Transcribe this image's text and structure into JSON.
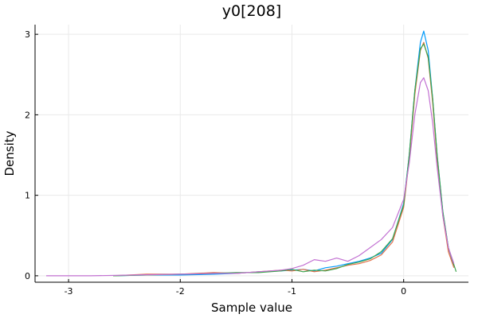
{
  "chart_data": {
    "type": "line",
    "title": "y0[208]",
    "xlabel": "Sample value",
    "ylabel": "Density",
    "xlim": [
      -3.3,
      0.58
    ],
    "ylim": [
      -0.08,
      3.12
    ],
    "xticks": [
      -3,
      -2,
      -1,
      0
    ],
    "xtick_labels": [
      "-3",
      "-2",
      "-1",
      "0"
    ],
    "yticks": [
      0,
      1,
      2,
      3
    ],
    "ytick_labels": [
      "0",
      "1",
      "2",
      "3"
    ],
    "grid": true,
    "legend": "none",
    "series": [
      {
        "color": "#009AFA",
        "x": [
          -2.6,
          -2.3,
          -2.0,
          -1.7,
          -1.5,
          -1.3,
          -1.1,
          -1.0,
          -0.9,
          -0.8,
          -0.7,
          -0.6,
          -0.5,
          -0.4,
          -0.3,
          -0.2,
          -0.1,
          0.0,
          0.05,
          0.1,
          0.15,
          0.18,
          0.22,
          0.26,
          0.3,
          0.35,
          0.4,
          0.45
        ],
        "y": [
          0.0,
          0.01,
          0.01,
          0.02,
          0.03,
          0.05,
          0.06,
          0.07,
          0.08,
          0.06,
          0.1,
          0.12,
          0.15,
          0.18,
          0.22,
          0.28,
          0.45,
          0.9,
          1.5,
          2.3,
          2.9,
          3.04,
          2.8,
          2.2,
          1.5,
          0.8,
          0.35,
          0.12
        ]
      },
      {
        "color": "#E36F47",
        "x": [
          -2.6,
          -2.3,
          -2.0,
          -1.7,
          -1.5,
          -1.3,
          -1.1,
          -1.0,
          -0.9,
          -0.8,
          -0.7,
          -0.6,
          -0.5,
          -0.4,
          -0.3,
          -0.2,
          -0.1,
          0.0,
          0.05,
          0.1,
          0.15,
          0.18,
          0.22,
          0.26,
          0.3,
          0.35,
          0.4,
          0.45
        ],
        "y": [
          0.0,
          0.02,
          0.02,
          0.04,
          0.03,
          0.05,
          0.07,
          0.06,
          0.08,
          0.05,
          0.07,
          0.1,
          0.13,
          0.15,
          0.19,
          0.26,
          0.42,
          0.85,
          1.45,
          2.25,
          2.8,
          2.9,
          2.7,
          2.15,
          1.45,
          0.75,
          0.3,
          0.1
        ]
      },
      {
        "color": "#3EA44E",
        "x": [
          -2.6,
          -2.3,
          -2.0,
          -1.7,
          -1.5,
          -1.3,
          -1.1,
          -1.0,
          -0.9,
          -0.8,
          -0.7,
          -0.6,
          -0.5,
          -0.4,
          -0.3,
          -0.2,
          -0.1,
          0.0,
          0.05,
          0.1,
          0.15,
          0.18,
          0.22,
          0.26,
          0.3,
          0.35,
          0.4,
          0.47
        ],
        "y": [
          0.0,
          0.01,
          0.02,
          0.03,
          0.04,
          0.04,
          0.06,
          0.08,
          0.05,
          0.07,
          0.06,
          0.09,
          0.14,
          0.17,
          0.21,
          0.3,
          0.46,
          0.88,
          1.5,
          2.3,
          2.82,
          2.88,
          2.72,
          2.2,
          1.5,
          0.8,
          0.35,
          0.05
        ]
      },
      {
        "color": "#C271D2",
        "x": [
          -3.2,
          -2.8,
          -2.4,
          -2.0,
          -1.7,
          -1.5,
          -1.3,
          -1.1,
          -1.0,
          -0.9,
          -0.8,
          -0.7,
          -0.6,
          -0.5,
          -0.4,
          -0.3,
          -0.2,
          -0.1,
          0.0,
          0.05,
          0.1,
          0.15,
          0.18,
          0.22,
          0.26,
          0.3,
          0.35,
          0.4,
          0.45
        ],
        "y": [
          0.0,
          0.0,
          0.01,
          0.02,
          0.03,
          0.03,
          0.05,
          0.07,
          0.09,
          0.13,
          0.2,
          0.18,
          0.22,
          0.18,
          0.25,
          0.35,
          0.45,
          0.6,
          0.95,
          1.4,
          2.0,
          2.4,
          2.46,
          2.3,
          1.9,
          1.35,
          0.75,
          0.35,
          0.15
        ]
      }
    ]
  }
}
